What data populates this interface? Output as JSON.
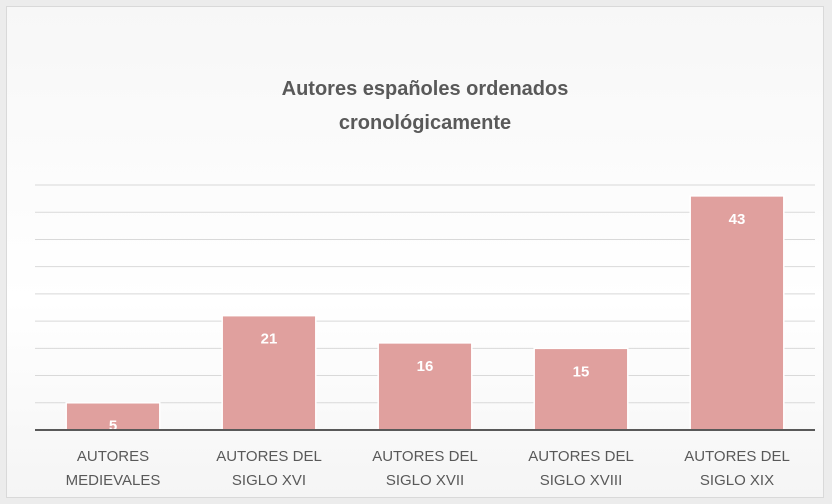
{
  "chart_data": {
    "type": "bar",
    "title": "Autores españoles ordenados cronológicamente",
    "categories": [
      [
        "AUTORES",
        "MEDIEVALES"
      ],
      [
        "AUTORES DEL",
        "SIGLO XVI"
      ],
      [
        "AUTORES DEL",
        "SIGLO XVII"
      ],
      [
        "AUTORES DEL",
        "SIGLO XVIII"
      ],
      [
        "AUTORES DEL",
        "SIGLO XIX"
      ]
    ],
    "values": [
      5,
      21,
      16,
      15,
      43
    ],
    "color": "#e0a09e",
    "ylim": [
      0,
      45
    ],
    "yticks": [
      0,
      5,
      10,
      15,
      20,
      25,
      30,
      35,
      40,
      45
    ],
    "grid": true
  }
}
